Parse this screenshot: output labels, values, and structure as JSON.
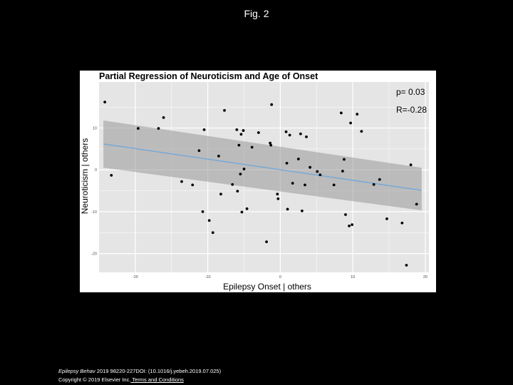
{
  "slide_title": "Fig. 2",
  "footer": {
    "journal": "Epilepsy Behav",
    "citation": " 2019 98220-227DOI: (10.1016/j.yebeh.2019.07.025) ",
    "copyright": "Copyright © 2019 Elsevier Inc.",
    "terms_link": " Terms and Conditions"
  },
  "colors": {
    "panel_background": "#e5e5e5",
    "gridline": "#ffffff",
    "ribbon": "#999999",
    "fit_line": "#6aa6dc",
    "points": "#000000"
  },
  "chart_data": {
    "type": "scatter",
    "title": "Partial Regression of Neuroticism and Age of Onset",
    "xlabel": "Epilepsy Onset | others",
    "ylabel": "Neuroticism | others",
    "xlim": [
      -25,
      20.5
    ],
    "ylim": [
      -24.5,
      21
    ],
    "xticks": [
      -20,
      -10,
      0,
      10,
      20
    ],
    "xtick_labels": [
      "-20",
      "-10",
      "0",
      "10",
      "20"
    ],
    "yticks": [
      -20,
      -10,
      0,
      10
    ],
    "ytick_labels": [
      "-20",
      "-10",
      "0",
      "10"
    ],
    "grid": true,
    "annotations": [
      "p= 0.03",
      "R=-0.28"
    ],
    "fit": {
      "x": [
        -24.4,
        19.5
      ],
      "y": [
        6.2,
        -4.9
      ],
      "ci_upper": [
        11.8,
        0.5
      ],
      "ci_lower": [
        0.5,
        -9.7
      ]
    },
    "points": {
      "x": [
        -24.2,
        -23.3,
        -19.6,
        -16.8,
        -16.1,
        -13.6,
        -12.1,
        -11.2,
        -10.7,
        -10.5,
        -9.8,
        -9.3,
        -8.5,
        -8.2,
        -7.7,
        -6.6,
        -6.0,
        -5.9,
        -5.7,
        -5.5,
        -5.4,
        -5.3,
        -5.1,
        -5.0,
        -4.6,
        -3.9,
        -3.0,
        -1.9,
        -1.4,
        -1.3,
        -1.2,
        -0.4,
        -0.3,
        0.8,
        0.9,
        1.0,
        1.3,
        1.7,
        2.5,
        2.8,
        3.0,
        3.4,
        3.6,
        4.1,
        5.1,
        5.5,
        7.4,
        8.4,
        8.6,
        8.8,
        9.0,
        9.5,
        9.7,
        9.9,
        10.6,
        11.2,
        12.9,
        13.7,
        14.7,
        16.8,
        17.4,
        18.0,
        18.8
      ],
      "y": [
        16.2,
        -1.3,
        9.9,
        9.9,
        12.5,
        -2.8,
        -3.6,
        4.6,
        -10.0,
        9.6,
        -12.1,
        -15.0,
        3.3,
        -5.8,
        14.2,
        -3.5,
        9.6,
        -5.1,
        5.9,
        -1.0,
        8.5,
        -10.1,
        9.4,
        0.2,
        -9.3,
        5.4,
        8.9,
        -17.2,
        6.4,
        5.9,
        15.6,
        -5.8,
        -6.9,
        9.1,
        1.6,
        -9.4,
        8.3,
        -3.2,
        2.6,
        8.6,
        -9.8,
        -3.6,
        7.9,
        0.6,
        -0.4,
        -1.2,
        -3.6,
        13.6,
        -0.3,
        2.5,
        -10.7,
        -13.4,
        11.2,
        -13.1,
        13.3,
        9.2,
        -3.5,
        -2.3,
        -11.7,
        -12.7,
        -22.8,
        1.2,
        -8.2
      ]
    }
  }
}
